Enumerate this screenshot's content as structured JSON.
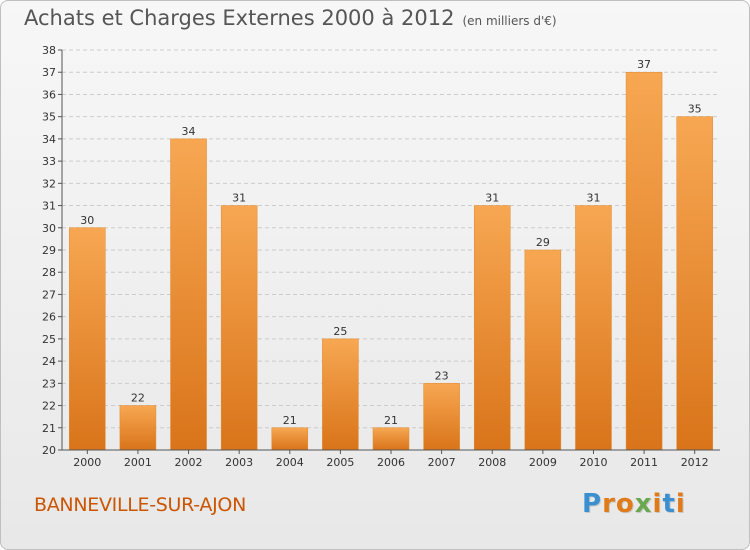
{
  "header": {
    "title": "Achats et Charges Externes 2000 à 2012",
    "unit": "(en milliers d'€)"
  },
  "footer": {
    "commune": "BANNEVILLE-SUR-AJON",
    "brand": "Proxiti",
    "brand_letters": [
      {
        "ch": "P",
        "color": "#3a8fd0"
      },
      {
        "ch": "r",
        "color": "#e07b1a"
      },
      {
        "ch": "o",
        "color": "#e07b1a"
      },
      {
        "ch": "x",
        "color": "#6aa84f"
      },
      {
        "ch": "i",
        "color": "#e07b1a"
      },
      {
        "ch": "t",
        "color": "#3a8fd0"
      },
      {
        "ch": "i",
        "color": "#e07b1a"
      }
    ]
  },
  "chart_data": {
    "type": "bar",
    "categories": [
      "2000",
      "2001",
      "2002",
      "2003",
      "2004",
      "2005",
      "2006",
      "2007",
      "2008",
      "2009",
      "2010",
      "2011",
      "2012"
    ],
    "values": [
      30,
      22,
      34,
      31,
      21,
      25,
      21,
      23,
      31,
      29,
      31,
      37,
      35
    ],
    "data_labels": [
      "30",
      "22",
      "34",
      "31",
      "21",
      "25",
      "21",
      "23",
      "31",
      "29",
      "31",
      "37",
      "35"
    ],
    "ylim": [
      20,
      38
    ],
    "yticks": [
      20,
      21,
      22,
      23,
      24,
      25,
      26,
      27,
      28,
      29,
      30,
      31,
      32,
      33,
      34,
      35,
      36,
      37,
      38
    ],
    "grid": true,
    "colors": {
      "bar_light": "#f7a752",
      "bar_dark": "#d9741a",
      "grid": "#cccccc",
      "axis": "#555555"
    }
  }
}
